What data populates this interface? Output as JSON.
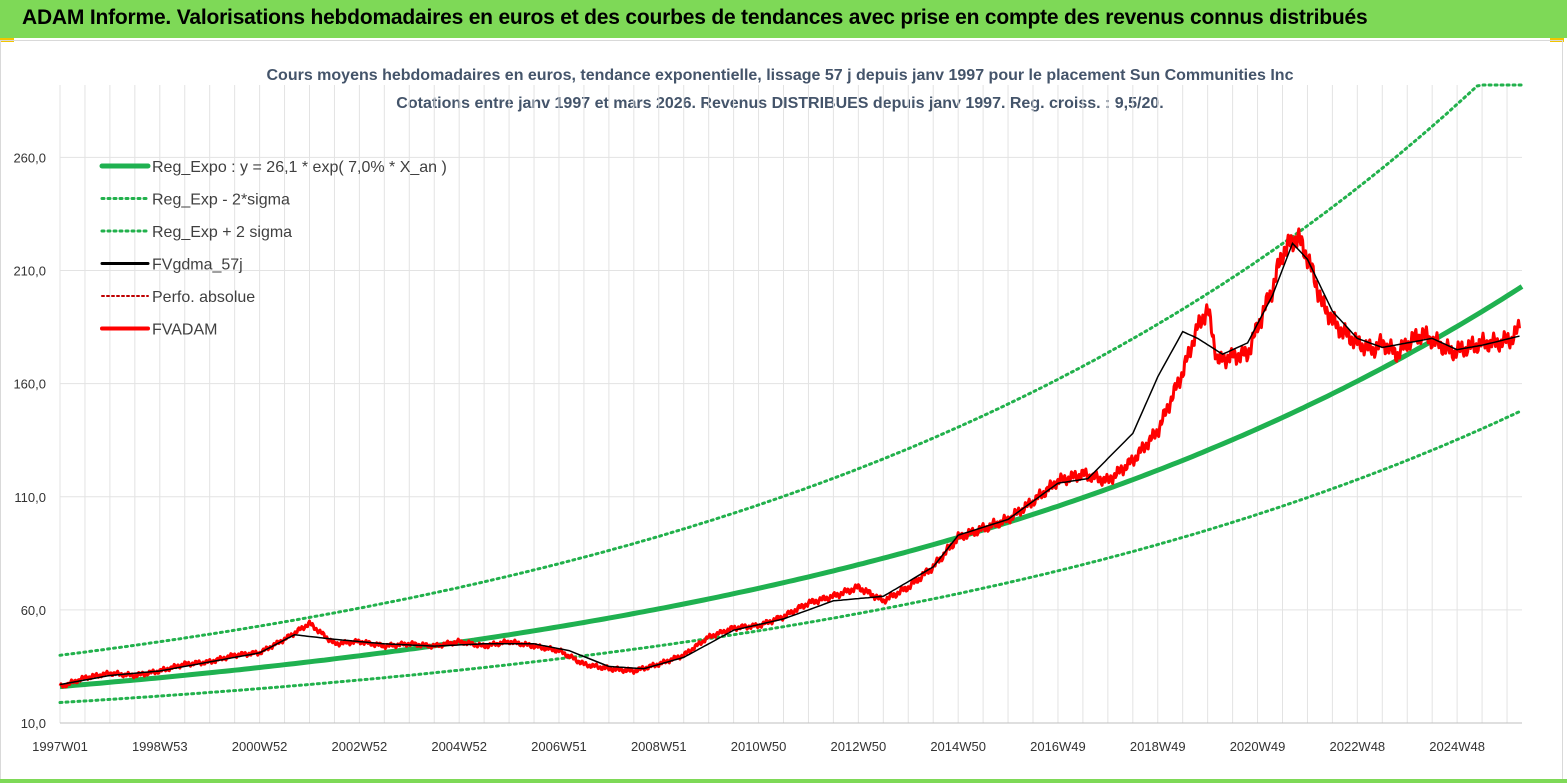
{
  "header": {
    "title": "ADAM Informe. Valorisations hebdomadaires en euros et des courbes de tendances avec prise en compte des revenus connus distribués"
  },
  "colors": {
    "banner": "#7ed957",
    "reg_expo": "#1fb150",
    "sigma": "#22b14c",
    "gdma": "#000000",
    "perfo": "#c00000",
    "fvadam": "#ff0000",
    "title": "#44546a",
    "grid": "#e3e3e3"
  },
  "chart_data": {
    "type": "line",
    "title_line1": "Cours moyens hebdomadaires en euros, tendance exponentielle, lissage 57 j depuis janv 1997 pour le placement Sun Communities Inc",
    "title_line2": "Cotations entre janv 1997 et mars 2026. Revenus DISTRIBUES depuis janv 1997. Reg. croiss. : 9,5/20.",
    "ylim": [
      10,
      292
    ],
    "yticks": [
      10,
      60,
      110,
      160,
      210,
      260
    ],
    "ytick_labels": [
      "10,0",
      "60,0",
      "110,0",
      "160,0",
      "210,0",
      "260,0"
    ],
    "xlim": [
      1997.0,
      2026.3
    ],
    "xticks": [
      1997.0,
      1999.0,
      2001.0,
      2003.0,
      2005.0,
      2007.0,
      2009.0,
      2011.0,
      2013.0,
      2015.0,
      2017.0,
      2019.0,
      2021.0,
      2023.0,
      2025.0
    ],
    "xtick_labels": [
      "1997W01",
      "1998W53",
      "2000W52",
      "2002W52",
      "2004W52",
      "2006W51",
      "2008W51",
      "2010W50",
      "2012W50",
      "2014W50",
      "2016W49",
      "2018W49",
      "2020W49",
      "2022W48",
      "2024W48"
    ],
    "legend": [
      {
        "key": "reg_expo",
        "label": "Reg_Expo : y = 26,1 * exp( 7,0% *  X_an )",
        "style": "solid-thick"
      },
      {
        "key": "minus",
        "label": "Reg_Exp - 2*sigma",
        "style": "dotted-green"
      },
      {
        "key": "plus",
        "label": "Reg_Exp + 2 sigma",
        "style": "dotted-green"
      },
      {
        "key": "gdma",
        "label": "FVgdma_57j",
        "style": "solid-black"
      },
      {
        "key": "perfo",
        "label": "Perfo. absolue",
        "style": "dotted-red"
      },
      {
        "key": "fvadam",
        "label": "FVADAM",
        "style": "solid-red"
      }
    ],
    "regression": {
      "a": 26.1,
      "rate": 0.07,
      "start_year": 1997.0
    },
    "upper_band_factor": 1.53,
    "lower_band_factor": 0.73,
    "series_fvadam": {
      "x": [
        1997.0,
        1997.5,
        1998.0,
        1998.5,
        1999.0,
        1999.5,
        2000.0,
        2000.5,
        2001.0,
        2001.5,
        2002.0,
        2002.5,
        2003.0,
        2003.5,
        2004.0,
        2004.5,
        2005.0,
        2005.5,
        2006.0,
        2006.5,
        2007.0,
        2007.5,
        2008.0,
        2008.5,
        2009.0,
        2009.5,
        2010.0,
        2010.5,
        2011.0,
        2011.5,
        2012.0,
        2012.5,
        2013.0,
        2013.5,
        2014.0,
        2014.5,
        2015.0,
        2015.5,
        2016.0,
        2016.5,
        2017.0,
        2017.5,
        2018.0,
        2018.5,
        2019.0,
        2019.5,
        2019.8,
        2020.0,
        2020.2,
        2020.5,
        2020.8,
        2021.0,
        2021.3,
        2021.5,
        2021.8,
        2022.0,
        2022.3,
        2022.6,
        2023.0,
        2023.3,
        2023.5,
        2023.8,
        2024.0,
        2024.3,
        2024.6,
        2024.9,
        2025.2,
        2025.5,
        2025.8,
        2026.1,
        2026.25
      ],
      "y": [
        26,
        30,
        32,
        31,
        33,
        36,
        37,
        40,
        41,
        47,
        54,
        45,
        46,
        44,
        45,
        44,
        46,
        44,
        46,
        44,
        42,
        36,
        34,
        33,
        36,
        40,
        48,
        52,
        53,
        57,
        63,
        66,
        70,
        64,
        70,
        79,
        92,
        96,
        100,
        108,
        117,
        120,
        117,
        126,
        139,
        165,
        185,
        193,
        170,
        172,
        173,
        185,
        202,
        218,
        225,
        216,
        195,
        185,
        178,
        175,
        178,
        173,
        178,
        182,
        178,
        174,
        176,
        178,
        178,
        180,
        185
      ]
    },
    "series_gdma": {
      "x": [
        1997.0,
        1998.0,
        1999.0,
        2000.0,
        2001.0,
        2001.7,
        2002.5,
        2003.5,
        2004.5,
        2005.5,
        2006.5,
        2007.2,
        2008.0,
        2008.7,
        2009.5,
        2010.5,
        2011.5,
        2012.5,
        2013.5,
        2014.5,
        2015.0,
        2016.0,
        2017.0,
        2017.6,
        2018.5,
        2019.0,
        2019.5,
        2019.8,
        2020.3,
        2020.8,
        2021.3,
        2021.7,
        2022.0,
        2022.5,
        2023.0,
        2023.5,
        2024.0,
        2024.5,
        2025.0,
        2025.5,
        2026.25
      ],
      "y": [
        27,
        31,
        33,
        37,
        41,
        49,
        47,
        45,
        44,
        45,
        45,
        42,
        35,
        34,
        39,
        51,
        56,
        64,
        66,
        79,
        93,
        100,
        116,
        118,
        138,
        163,
        183,
        180,
        173,
        178,
        199,
        222,
        215,
        192,
        180,
        176,
        178,
        180,
        175,
        177,
        181
      ]
    }
  }
}
